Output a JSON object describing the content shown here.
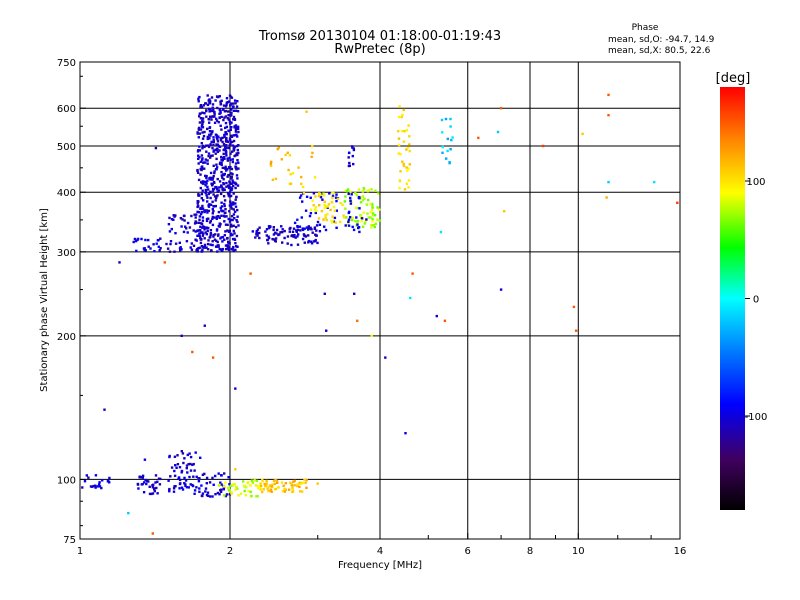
{
  "chart_data": {
    "type": "scatter",
    "title": "Tromsø 20130104 01:18:00-01:19:43",
    "subtitle": "RwPretec (8p)",
    "xlabel": "Frequency [MHz]",
    "ylabel": "Stationary phase Virtual Height [km]",
    "x_scale": "log",
    "y_scale": "log",
    "xlim": [
      1,
      16
    ],
    "ylim": [
      75,
      750
    ],
    "x_ticks": [
      "1",
      "2",
      "4",
      "6",
      "8",
      "10",
      "16"
    ],
    "y_ticks": [
      "75",
      "100",
      "200",
      "300",
      "400",
      "500",
      "600",
      "750"
    ],
    "x_gridlines": [
      2,
      4,
      6,
      8,
      10
    ],
    "y_gridlines": [
      100,
      200,
      300,
      400,
      500,
      600
    ],
    "phase_box": {
      "heading": "Phase",
      "line1": "mean, sd,O: -94.7, 14.9",
      "line2": "mean, sd,X:  80.5, 22.6"
    },
    "colorbar": {
      "label": "[deg]",
      "range": [
        -180,
        180
      ],
      "ticks": [
        "100",
        "0",
        "-100"
      ],
      "tick_values": [
        100,
        0,
        -100
      ]
    },
    "clusters": [
      {
        "f": [
          1.72,
          2.08
        ],
        "h": [
          300,
          640
        ],
        "phase": -110,
        "n": 700
      },
      {
        "f": [
          1.5,
          1.78
        ],
        "h": [
          300,
          360
        ],
        "phase": -110,
        "n": 60
      },
      {
        "f": [
          1.28,
          1.5
        ],
        "h": [
          300,
          320
        ],
        "phase": -100,
        "n": 25
      },
      {
        "f": [
          2.2,
          3.0
        ],
        "h": [
          310,
          340
        ],
        "phase": -110,
        "n": 100
      },
      {
        "f": [
          2.7,
          3.3
        ],
        "h": [
          330,
          400
        ],
        "phase": -95,
        "n": 35
      },
      {
        "f": [
          2.9,
          3.4
        ],
        "h": [
          345,
          400
        ],
        "phase": 100,
        "n": 45
      },
      {
        "f": [
          3.4,
          4.0
        ],
        "h": [
          335,
          410
        ],
        "phase": 75,
        "n": 75
      },
      {
        "f": [
          3.4,
          3.8
        ],
        "h": [
          330,
          400
        ],
        "phase": -100,
        "n": 25
      },
      {
        "f": [
          2.4,
          3.0
        ],
        "h": [
          390,
          500
        ],
        "phase": 110,
        "n": 25
      },
      {
        "f": [
          4.35,
          4.6
        ],
        "h": [
          400,
          620
        ],
        "phase": 100,
        "n": 35
      },
      {
        "f": [
          3.45,
          3.55
        ],
        "h": [
          440,
          520
        ],
        "phase": -110,
        "n": 12
      },
      {
        "f": [
          5.3,
          5.6
        ],
        "h": [
          460,
          570
        ],
        "phase": -20,
        "n": 15
      },
      {
        "f": [
          1.0,
          1.15
        ],
        "h": [
          95,
          102
        ],
        "phase": -105,
        "n": 20
      },
      {
        "f": [
          1.3,
          1.45
        ],
        "h": [
          93,
          102
        ],
        "phase": -110,
        "n": 35
      },
      {
        "f": [
          1.5,
          1.75
        ],
        "h": [
          93,
          115
        ],
        "phase": -105,
        "n": 70
      },
      {
        "f": [
          1.75,
          2.0
        ],
        "h": [
          92,
          103
        ],
        "phase": -105,
        "n": 40
      },
      {
        "f": [
          1.9,
          2.3
        ],
        "h": [
          92,
          100
        ],
        "phase": 80,
        "n": 45
      },
      {
        "f": [
          2.3,
          2.85
        ],
        "h": [
          94,
          100
        ],
        "phase": 110,
        "n": 65
      }
    ],
    "scattered_points": [
      {
        "f": 1.12,
        "h": 140,
        "phase": -120
      },
      {
        "f": 1.2,
        "h": 285,
        "phase": -110
      },
      {
        "f": 1.35,
        "h": 110,
        "phase": -100
      },
      {
        "f": 1.42,
        "h": 495,
        "phase": -120
      },
      {
        "f": 1.4,
        "h": 77,
        "phase": 150
      },
      {
        "f": 1.48,
        "h": 285,
        "phase": 150
      },
      {
        "f": 1.6,
        "h": 200,
        "phase": -110
      },
      {
        "f": 1.68,
        "h": 185,
        "phase": 150
      },
      {
        "f": 1.78,
        "h": 210,
        "phase": -110
      },
      {
        "f": 1.85,
        "h": 180,
        "phase": 150
      },
      {
        "f": 2.05,
        "h": 155,
        "phase": -110
      },
      {
        "f": 2.2,
        "h": 270,
        "phase": 150
      },
      {
        "f": 2.85,
        "h": 590,
        "phase": 110
      },
      {
        "f": 3.1,
        "h": 245,
        "phase": -120
      },
      {
        "f": 3.12,
        "h": 205,
        "phase": -110
      },
      {
        "f": 3.55,
        "h": 245,
        "phase": -110
      },
      {
        "f": 3.6,
        "h": 215,
        "phase": 140
      },
      {
        "f": 3.85,
        "h": 200,
        "phase": 90
      },
      {
        "f": 4.1,
        "h": 180,
        "phase": -110
      },
      {
        "f": 4.5,
        "h": 125,
        "phase": -100
      },
      {
        "f": 4.6,
        "h": 240,
        "phase": -10
      },
      {
        "f": 4.65,
        "h": 270,
        "phase": 150
      },
      {
        "f": 5.2,
        "h": 220,
        "phase": -110
      },
      {
        "f": 5.4,
        "h": 215,
        "phase": 150
      },
      {
        "f": 5.3,
        "h": 330,
        "phase": -10
      },
      {
        "f": 6.3,
        "h": 520,
        "phase": 150
      },
      {
        "f": 6.9,
        "h": 535,
        "phase": -20
      },
      {
        "f": 7.0,
        "h": 600,
        "phase": 150
      },
      {
        "f": 7.1,
        "h": 365,
        "phase": 110
      },
      {
        "f": 7.0,
        "h": 250,
        "phase": -110
      },
      {
        "f": 8.5,
        "h": 500,
        "phase": 160
      },
      {
        "f": 9.8,
        "h": 230,
        "phase": 150
      },
      {
        "f": 9.9,
        "h": 205,
        "phase": 150
      },
      {
        "f": 10.2,
        "h": 530,
        "phase": 110
      },
      {
        "f": 11.5,
        "h": 640,
        "phase": 150
      },
      {
        "f": 11.5,
        "h": 580,
        "phase": 150
      },
      {
        "f": 11.5,
        "h": 420,
        "phase": -20
      },
      {
        "f": 11.4,
        "h": 390,
        "phase": 120
      },
      {
        "f": 14.2,
        "h": 420,
        "phase": -10
      },
      {
        "f": 15.8,
        "h": 380,
        "phase": 160
      },
      {
        "f": 2.05,
        "h": 105,
        "phase": 110
      },
      {
        "f": 3.0,
        "h": 98,
        "phase": 110
      },
      {
        "f": 1.25,
        "h": 85,
        "phase": -20
      }
    ]
  }
}
